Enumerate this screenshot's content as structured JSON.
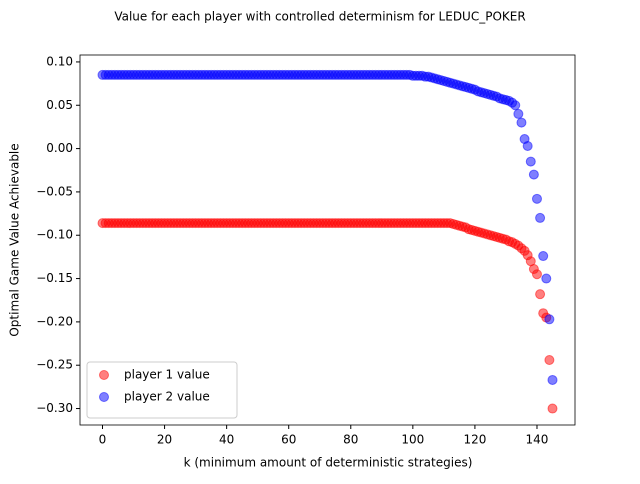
{
  "chart_data": {
    "type": "scatter",
    "title": "Value for each player with controlled determinism for LEDUC_POKER",
    "x_label": "k (minimum amount of deterministic strategies)",
    "y_label": "Optimal Game Value Achievable",
    "x": [
      0,
      1,
      2,
      3,
      4,
      5,
      6,
      7,
      8,
      9,
      10,
      11,
      12,
      13,
      14,
      15,
      16,
      17,
      18,
      19,
      20,
      21,
      22,
      23,
      24,
      25,
      26,
      27,
      28,
      29,
      30,
      31,
      32,
      33,
      34,
      35,
      36,
      37,
      38,
      39,
      40,
      41,
      42,
      43,
      44,
      45,
      46,
      47,
      48,
      49,
      50,
      51,
      52,
      53,
      54,
      55,
      56,
      57,
      58,
      59,
      60,
      61,
      62,
      63,
      64,
      65,
      66,
      67,
      68,
      69,
      70,
      71,
      72,
      73,
      74,
      75,
      76,
      77,
      78,
      79,
      80,
      81,
      82,
      83,
      84,
      85,
      86,
      87,
      88,
      89,
      90,
      91,
      92,
      93,
      94,
      95,
      96,
      97,
      98,
      99,
      100,
      101,
      102,
      103,
      104,
      105,
      106,
      107,
      108,
      109,
      110,
      111,
      112,
      113,
      114,
      115,
      116,
      117,
      118,
      119,
      120,
      121,
      122,
      123,
      124,
      125,
      126,
      127,
      128,
      129,
      130,
      131,
      132,
      133,
      134,
      135,
      136,
      137,
      138,
      139,
      140,
      141,
      142,
      143,
      144,
      145
    ],
    "series": [
      {
        "name": "player 1 value",
        "color": "#ff0000",
        "values": [
          -0.086,
          -0.086,
          -0.086,
          -0.086,
          -0.086,
          -0.086,
          -0.086,
          -0.086,
          -0.086,
          -0.086,
          -0.086,
          -0.086,
          -0.086,
          -0.086,
          -0.086,
          -0.086,
          -0.086,
          -0.086,
          -0.086,
          -0.086,
          -0.086,
          -0.086,
          -0.086,
          -0.086,
          -0.086,
          -0.086,
          -0.086,
          -0.086,
          -0.086,
          -0.086,
          -0.086,
          -0.086,
          -0.086,
          -0.086,
          -0.086,
          -0.086,
          -0.086,
          -0.086,
          -0.086,
          -0.086,
          -0.086,
          -0.086,
          -0.086,
          -0.086,
          -0.086,
          -0.086,
          -0.086,
          -0.086,
          -0.086,
          -0.086,
          -0.086,
          -0.086,
          -0.086,
          -0.086,
          -0.086,
          -0.086,
          -0.086,
          -0.086,
          -0.086,
          -0.086,
          -0.086,
          -0.086,
          -0.086,
          -0.086,
          -0.086,
          -0.086,
          -0.086,
          -0.086,
          -0.086,
          -0.086,
          -0.086,
          -0.086,
          -0.086,
          -0.086,
          -0.086,
          -0.086,
          -0.086,
          -0.086,
          -0.086,
          -0.086,
          -0.086,
          -0.086,
          -0.086,
          -0.086,
          -0.086,
          -0.086,
          -0.086,
          -0.086,
          -0.086,
          -0.086,
          -0.086,
          -0.086,
          -0.086,
          -0.086,
          -0.086,
          -0.086,
          -0.086,
          -0.086,
          -0.086,
          -0.086,
          -0.086,
          -0.086,
          -0.086,
          -0.086,
          -0.086,
          -0.086,
          -0.086,
          -0.086,
          -0.086,
          -0.086,
          -0.086,
          -0.086,
          -0.086,
          -0.087,
          -0.088,
          -0.089,
          -0.09,
          -0.091,
          -0.093,
          -0.094,
          -0.095,
          -0.096,
          -0.097,
          -0.098,
          -0.099,
          -0.1,
          -0.101,
          -0.102,
          -0.103,
          -0.104,
          -0.105,
          -0.107,
          -0.108,
          -0.11,
          -0.112,
          -0.115,
          -0.118,
          -0.123,
          -0.13,
          -0.139,
          -0.145,
          -0.168,
          -0.19,
          -0.195,
          -0.244,
          -0.3
        ]
      },
      {
        "name": "player 2 value",
        "color": "#0000ff",
        "values": [
          0.085,
          0.085,
          0.085,
          0.085,
          0.085,
          0.085,
          0.085,
          0.085,
          0.085,
          0.085,
          0.085,
          0.085,
          0.085,
          0.085,
          0.085,
          0.085,
          0.085,
          0.085,
          0.085,
          0.085,
          0.085,
          0.085,
          0.085,
          0.085,
          0.085,
          0.085,
          0.085,
          0.085,
          0.085,
          0.085,
          0.085,
          0.085,
          0.085,
          0.085,
          0.085,
          0.085,
          0.085,
          0.085,
          0.085,
          0.085,
          0.085,
          0.085,
          0.085,
          0.085,
          0.085,
          0.085,
          0.085,
          0.085,
          0.085,
          0.085,
          0.085,
          0.085,
          0.085,
          0.085,
          0.085,
          0.085,
          0.085,
          0.085,
          0.085,
          0.085,
          0.085,
          0.085,
          0.085,
          0.085,
          0.085,
          0.085,
          0.085,
          0.085,
          0.085,
          0.085,
          0.085,
          0.085,
          0.085,
          0.085,
          0.085,
          0.085,
          0.085,
          0.085,
          0.085,
          0.085,
          0.085,
          0.085,
          0.085,
          0.085,
          0.085,
          0.085,
          0.085,
          0.085,
          0.085,
          0.085,
          0.085,
          0.085,
          0.085,
          0.085,
          0.085,
          0.085,
          0.085,
          0.085,
          0.085,
          0.085,
          0.084,
          0.084,
          0.084,
          0.084,
          0.083,
          0.083,
          0.082,
          0.081,
          0.08,
          0.079,
          0.078,
          0.077,
          0.076,
          0.075,
          0.074,
          0.073,
          0.072,
          0.071,
          0.07,
          0.069,
          0.068,
          0.066,
          0.065,
          0.064,
          0.063,
          0.062,
          0.061,
          0.06,
          0.058,
          0.057,
          0.056,
          0.055,
          0.053,
          0.05,
          0.04,
          0.03,
          0.011,
          0.003,
          -0.015,
          -0.03,
          -0.058,
          -0.08,
          -0.124,
          -0.15,
          -0.197,
          -0.267
        ]
      }
    ],
    "xlim": [
      -7.25,
      152.25
    ],
    "ylim": [
      -0.319,
      0.108
    ],
    "xticks": [
      0,
      20,
      40,
      60,
      80,
      100,
      120,
      140
    ],
    "yticks": [
      {
        "value": 0.1,
        "label": "0.10"
      },
      {
        "value": 0.05,
        "label": "0.05"
      },
      {
        "value": 0,
        "label": "0.00"
      },
      {
        "value": -0.05,
        "label": "−0.05"
      },
      {
        "value": -0.1,
        "label": "−0.10"
      },
      {
        "value": -0.15,
        "label": "−0.15"
      },
      {
        "value": -0.2,
        "label": "−0.20"
      },
      {
        "value": -0.25,
        "label": "−0.25"
      },
      {
        "value": -0.3,
        "label": "−0.30"
      }
    ],
    "legend": "lower left",
    "alpha": 0.5
  }
}
